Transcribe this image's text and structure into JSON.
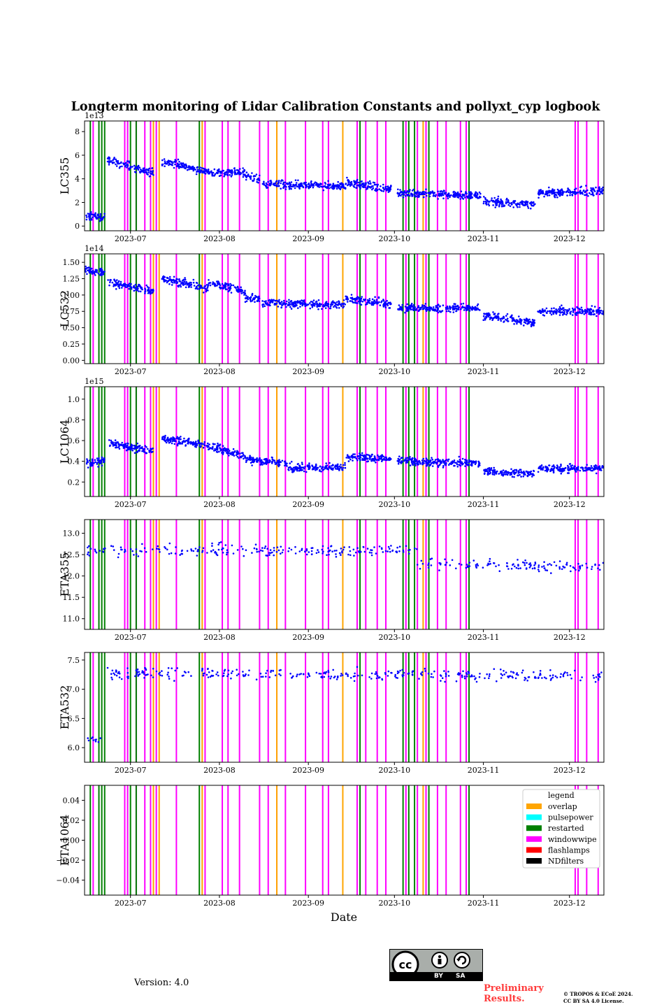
{
  "figure": {
    "title": "Longterm monitoring of Lidar Calibration Constants and pollyxt_cyp logbook",
    "xlabel": "Date",
    "footer": {
      "version": "Version: 4.0",
      "preliminary": "Preliminary Results.",
      "copyright_line1": "© TROPOS & ECoE 2024.",
      "copyright_line2": "CC BY SA 4.0 License.",
      "license_badge_labels": [
        "BY",
        "SA"
      ],
      "license_badge_icons": [
        "cc-icon",
        "attribution-icon",
        "share-alike-icon"
      ]
    }
  },
  "chart_data": {
    "type": "scatter",
    "x_axis": {
      "type": "date",
      "range": [
        "2023-06-15",
        "2023-12-13"
      ],
      "ticks": [
        "2023-07-01",
        "2023-08-01",
        "2023-09-01",
        "2023-10-01",
        "2023-11-01",
        "2023-12-01"
      ],
      "tick_labels": [
        "2023-07",
        "2023-08",
        "2023-09",
        "2023-10",
        "2023-11",
        "2023-12"
      ]
    },
    "marker_color": "#0000ff",
    "logbook": {
      "colors": {
        "overlap": "#ffa500",
        "pulsepower": "#00ffff",
        "restarted": "#008000",
        "windowwipe": "#ff00ff",
        "flashlamps": "#ff0000",
        "NDfilters": "#000000"
      },
      "legend": {
        "title": "legend",
        "entries": [
          "overlap",
          "pulsepower",
          "restarted",
          "windowwipe",
          "flashlamps",
          "NDfilters"
        ],
        "placement": "upper-right of ETA1064 panel"
      },
      "events": [
        {
          "type": "restarted",
          "date": "2023-06-17"
        },
        {
          "type": "windowwipe",
          "date": "2023-06-18"
        },
        {
          "type": "windowwipe",
          "date": "2023-06-20"
        },
        {
          "type": "restarted",
          "date": "2023-06-20"
        },
        {
          "type": "restarted",
          "date": "2023-06-21"
        },
        {
          "type": "restarted",
          "date": "2023-06-22"
        },
        {
          "type": "windowwipe",
          "date": "2023-06-29"
        },
        {
          "type": "windowwipe",
          "date": "2023-06-30"
        },
        {
          "type": "restarted",
          "date": "2023-07-01"
        },
        {
          "type": "windowwipe",
          "date": "2023-07-03"
        },
        {
          "type": "restarted",
          "date": "2023-07-03"
        },
        {
          "type": "windowwipe",
          "date": "2023-07-06"
        },
        {
          "type": "windowwipe",
          "date": "2023-07-08"
        },
        {
          "type": "overlap",
          "date": "2023-07-09"
        },
        {
          "type": "windowwipe",
          "date": "2023-07-10"
        },
        {
          "type": "overlap",
          "date": "2023-07-11"
        },
        {
          "type": "windowwipe",
          "date": "2023-07-17"
        },
        {
          "type": "restarted",
          "date": "2023-07-25"
        },
        {
          "type": "overlap",
          "date": "2023-07-26"
        },
        {
          "type": "windowwipe",
          "date": "2023-07-27"
        },
        {
          "type": "windowwipe",
          "date": "2023-08-02"
        },
        {
          "type": "windowwipe",
          "date": "2023-08-04"
        },
        {
          "type": "windowwipe",
          "date": "2023-08-08"
        },
        {
          "type": "windowwipe",
          "date": "2023-08-15"
        },
        {
          "type": "windowwipe",
          "date": "2023-08-18"
        },
        {
          "type": "windowwipe",
          "date": "2023-08-21"
        },
        {
          "type": "overlap",
          "date": "2023-08-21"
        },
        {
          "type": "windowwipe",
          "date": "2023-08-24"
        },
        {
          "type": "windowwipe",
          "date": "2023-08-31"
        },
        {
          "type": "windowwipe",
          "date": "2023-09-06"
        },
        {
          "type": "windowwipe",
          "date": "2023-09-08"
        },
        {
          "type": "overlap",
          "date": "2023-09-13"
        },
        {
          "type": "windowwipe",
          "date": "2023-09-18"
        },
        {
          "type": "restarted",
          "date": "2023-09-19"
        },
        {
          "type": "windowwipe",
          "date": "2023-09-21"
        },
        {
          "type": "windowwipe",
          "date": "2023-09-25"
        },
        {
          "type": "windowwipe",
          "date": "2023-09-28"
        },
        {
          "type": "restarted",
          "date": "2023-10-04"
        },
        {
          "type": "windowwipe",
          "date": "2023-10-05"
        },
        {
          "type": "restarted",
          "date": "2023-10-06"
        },
        {
          "type": "restarted",
          "date": "2023-10-08"
        },
        {
          "type": "windowwipe",
          "date": "2023-10-09"
        },
        {
          "type": "overlap",
          "date": "2023-10-11"
        },
        {
          "type": "windowwipe",
          "date": "2023-10-12"
        },
        {
          "type": "restarted",
          "date": "2023-10-13"
        },
        {
          "type": "windowwipe",
          "date": "2023-10-16"
        },
        {
          "type": "windowwipe",
          "date": "2023-10-19"
        },
        {
          "type": "windowwipe",
          "date": "2023-10-24"
        },
        {
          "type": "windowwipe",
          "date": "2023-10-26"
        },
        {
          "type": "restarted",
          "date": "2023-10-27"
        },
        {
          "type": "windowwipe",
          "date": "2023-12-03"
        },
        {
          "type": "windowwipe",
          "date": "2023-12-04"
        },
        {
          "type": "windowwipe",
          "date": "2023-12-07"
        },
        {
          "type": "windowwipe",
          "date": "2023-12-11"
        }
      ]
    },
    "panels": [
      {
        "ylabel": "LC355",
        "offset_label": "1e13",
        "ylim": [
          -0.4,
          8.9
        ],
        "yticks": [
          0,
          2,
          4,
          6,
          8
        ],
        "ytick_labels": [
          "0",
          "2",
          "4",
          "6",
          "8"
        ],
        "series": [
          {
            "x": [
              "2023-06-15",
              "2023-06-22"
            ],
            "y": [
              0.8,
              0.8
            ]
          },
          {
            "x": [
              "2023-06-23",
              "2023-07-09"
            ],
            "y": [
              5.6,
              4.5
            ]
          },
          {
            "x": [
              "2023-07-12",
              "2023-07-28"
            ],
            "y": [
              5.5,
              4.6
            ]
          },
          {
            "x": [
              "2023-07-28",
              "2023-08-10"
            ],
            "y": [
              4.5,
              4.6
            ]
          },
          {
            "x": [
              "2023-08-10",
              "2023-08-15"
            ],
            "y": [
              4.2,
              4.0
            ]
          },
          {
            "x": [
              "2023-08-16",
              "2023-09-14"
            ],
            "y": [
              3.5,
              3.4
            ]
          },
          {
            "x": [
              "2023-09-14",
              "2023-09-30"
            ],
            "y": [
              3.7,
              3.1
            ]
          },
          {
            "x": [
              "2023-10-02",
              "2023-10-31"
            ],
            "y": [
              2.8,
              2.6
            ]
          },
          {
            "x": [
              "2023-11-01",
              "2023-11-19"
            ],
            "y": [
              2.1,
              1.8
            ]
          },
          {
            "x": [
              "2023-11-20",
              "2023-12-13"
            ],
            "y": [
              2.8,
              3.0
            ]
          }
        ]
      },
      {
        "ylabel": "LC532",
        "offset_label": "1e14",
        "ylim": [
          -0.05,
          1.63
        ],
        "yticks": [
          0.0,
          0.25,
          0.5,
          0.75,
          1.0,
          1.25,
          1.5
        ],
        "ytick_labels": [
          "0.00",
          "0.25",
          "0.50",
          "0.75",
          "1.00",
          "1.25",
          "1.50"
        ],
        "series": [
          {
            "x": [
              "2023-06-15",
              "2023-06-22"
            ],
            "y": [
              1.38,
              1.35
            ]
          },
          {
            "x": [
              "2023-06-23",
              "2023-07-09"
            ],
            "y": [
              1.2,
              1.05
            ]
          },
          {
            "x": [
              "2023-07-12",
              "2023-07-28"
            ],
            "y": [
              1.25,
              1.1
            ]
          },
          {
            "x": [
              "2023-07-28",
              "2023-08-10"
            ],
            "y": [
              1.2,
              1.05
            ]
          },
          {
            "x": [
              "2023-08-10",
              "2023-08-15"
            ],
            "y": [
              0.95,
              0.95
            ]
          },
          {
            "x": [
              "2023-08-16",
              "2023-09-14"
            ],
            "y": [
              0.88,
              0.85
            ]
          },
          {
            "x": [
              "2023-09-14",
              "2023-09-30"
            ],
            "y": [
              0.95,
              0.85
            ]
          },
          {
            "x": [
              "2023-10-02",
              "2023-10-31"
            ],
            "y": [
              0.8,
              0.8
            ]
          },
          {
            "x": [
              "2023-11-01",
              "2023-11-19"
            ],
            "y": [
              0.68,
              0.58
            ]
          },
          {
            "x": [
              "2023-11-20",
              "2023-12-13"
            ],
            "y": [
              0.75,
              0.75
            ]
          }
        ]
      },
      {
        "ylabel": "LC1064",
        "offset_label": "1e15",
        "ylim": [
          0.06,
          1.12
        ],
        "yticks": [
          0.2,
          0.4,
          0.6,
          0.8,
          1.0
        ],
        "ytick_labels": [
          "0.2",
          "0.4",
          "0.6",
          "0.8",
          "1.0"
        ],
        "series": [
          {
            "x": [
              "2023-06-15",
              "2023-06-22"
            ],
            "y": [
              0.38,
              0.4
            ]
          },
          {
            "x": [
              "2023-06-23",
              "2023-07-09"
            ],
            "y": [
              0.58,
              0.5
            ]
          },
          {
            "x": [
              "2023-07-12",
              "2023-07-28"
            ],
            "y": [
              0.62,
              0.55
            ]
          },
          {
            "x": [
              "2023-07-28",
              "2023-08-10"
            ],
            "y": [
              0.55,
              0.45
            ]
          },
          {
            "x": [
              "2023-08-10",
              "2023-08-25"
            ],
            "y": [
              0.42,
              0.38
            ]
          },
          {
            "x": [
              "2023-08-25",
              "2023-09-14"
            ],
            "y": [
              0.34,
              0.34
            ]
          },
          {
            "x": [
              "2023-09-14",
              "2023-09-30"
            ],
            "y": [
              0.45,
              0.42
            ]
          },
          {
            "x": [
              "2023-10-02",
              "2023-10-31"
            ],
            "y": [
              0.4,
              0.38
            ]
          },
          {
            "x": [
              "2023-11-01",
              "2023-11-19"
            ],
            "y": [
              0.3,
              0.28
            ]
          },
          {
            "x": [
              "2023-11-20",
              "2023-12-13"
            ],
            "y": [
              0.33,
              0.33
            ]
          }
        ]
      },
      {
        "ylabel": "ETA355",
        "offset_label": "",
        "ylim": [
          10.75,
          13.32
        ],
        "yticks": [
          11.0,
          11.5,
          12.0,
          12.5,
          13.0
        ],
        "ytick_labels": [
          "11.0",
          "11.5",
          "12.0",
          "12.5",
          "13.0"
        ],
        "series": [
          {
            "x": [
              "2023-06-16",
              "2023-10-09"
            ],
            "y": [
              12.6,
              12.6
            ]
          },
          {
            "x": [
              "2023-10-09",
              "2023-12-13"
            ],
            "y": [
              12.3,
              12.2
            ]
          }
        ]
      },
      {
        "ylabel": "ETA532",
        "offset_label": "",
        "ylim": [
          5.75,
          7.63
        ],
        "yticks": [
          6.0,
          6.5,
          7.0,
          7.5
        ],
        "ytick_labels": [
          "6.0",
          "6.5",
          "7.0",
          "7.5"
        ],
        "series": [
          {
            "x": [
              "2023-06-16",
              "2023-06-21"
            ],
            "y": [
              6.15,
              6.1
            ]
          },
          {
            "x": [
              "2023-06-23",
              "2023-12-13"
            ],
            "y": [
              7.28,
              7.22
            ]
          }
        ]
      },
      {
        "ylabel": "ETA1064",
        "offset_label": "",
        "ylim": [
          -0.055,
          0.055
        ],
        "yticks": [
          -0.04,
          -0.02,
          0.0,
          0.02,
          0.04
        ],
        "ytick_labels": [
          "−0.04",
          "−0.02",
          "0.00",
          "0.02",
          "0.04"
        ],
        "series": []
      }
    ]
  }
}
